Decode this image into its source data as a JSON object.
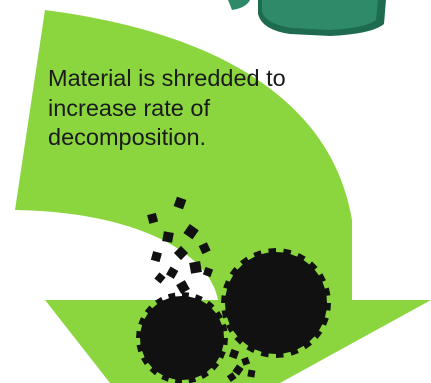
{
  "caption": "Material is shredded to increase rate of decomposition.",
  "colors": {
    "arrow": "#8bd63e",
    "arrow_shadow": "#6fb82a",
    "bin": "#2f8a6a",
    "bin_dark": "#1f6b50",
    "particles": "#111111"
  },
  "icons": {
    "bin": "compost-bin-icon",
    "particles": "shredded-particles-icon"
  }
}
